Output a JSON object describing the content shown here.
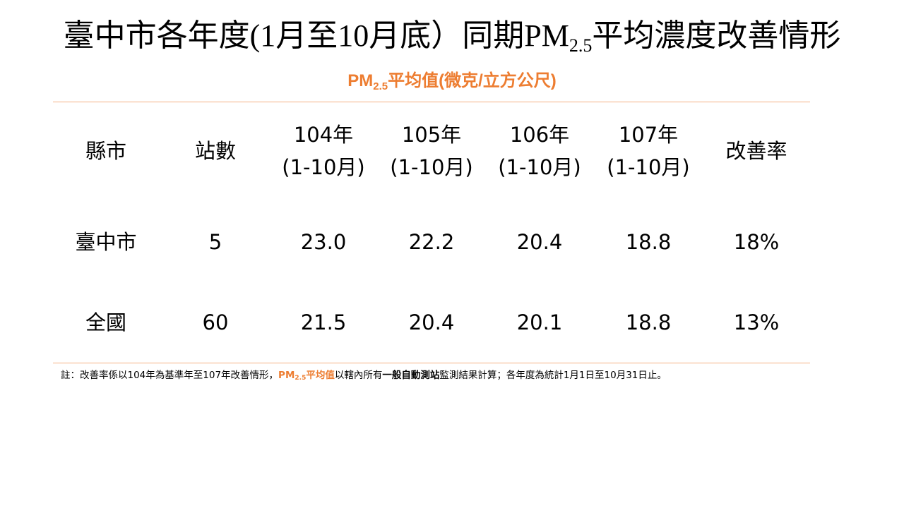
{
  "title": {
    "before": "臺中市各年度(1月至10月底）同期PM",
    "sub": "2.5",
    "after": "平均濃度改善情形"
  },
  "subtitle": {
    "before": "PM",
    "sub": "2.5",
    "after": "平均值(微克/立方公尺)"
  },
  "table": {
    "header": [
      [
        "縣市"
      ],
      [
        "站數"
      ],
      [
        "104年",
        "(1-10月)"
      ],
      [
        "105年",
        "(1-10月)"
      ],
      [
        "106年",
        "(1-10月)"
      ],
      [
        "107年",
        "(1-10月)"
      ],
      [
        "改善率"
      ]
    ],
    "rows": [
      [
        "臺中市",
        "5",
        "23.0",
        "22.2",
        "20.4",
        "18.8",
        "18%"
      ],
      [
        "全國",
        "60",
        "21.5",
        "20.4",
        "20.1",
        "18.8",
        "13%"
      ]
    ]
  },
  "note": [
    "註：改善率係以104年為基準年至107年改善情形，",
    "PM",
    "2.5",
    "平均值",
    "以轄內所有",
    "一般自動測站",
    "監測結果計算；各年度為統計1月1日至10月31日止。"
  ]
}
